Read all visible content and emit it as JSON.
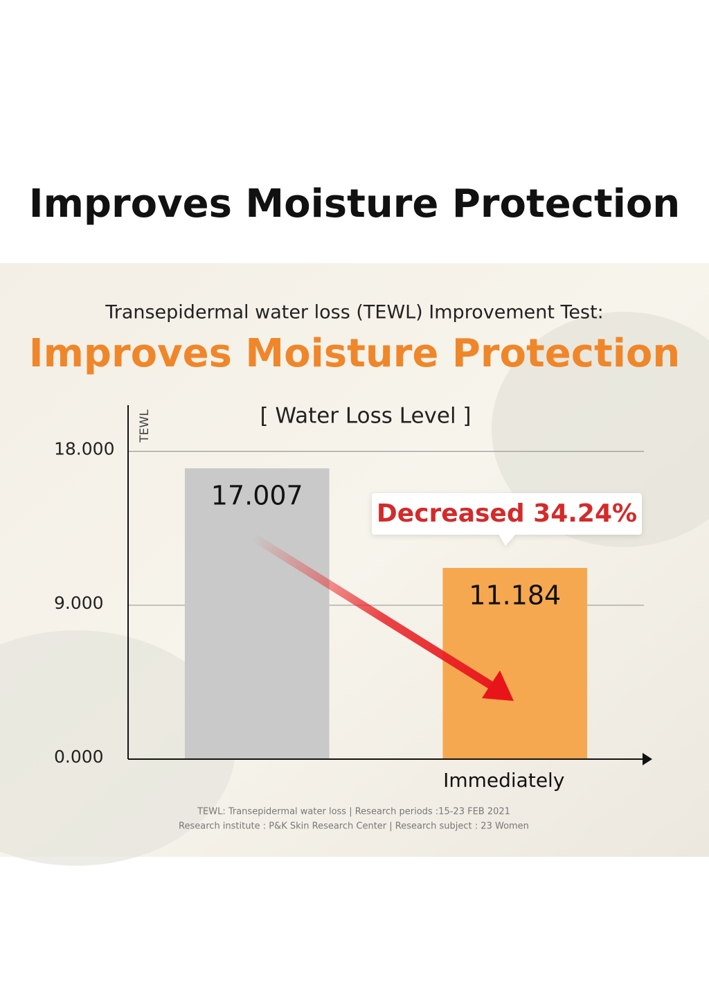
{
  "heading": "Improves Moisture Protection",
  "chart_data": {
    "type": "bar",
    "subtitle": "Transepidermal water loss (TEWL) Improvement Test:",
    "headline": "Improves Moisture Protection",
    "title": "[ Water Loss Level ]",
    "ylabel": "TEWL",
    "categories": [
      null,
      "Immediately"
    ],
    "values": [
      17.007,
      11.184
    ],
    "colors": [
      "#c9c9c9",
      "#f6a850"
    ],
    "ylim": [
      0,
      20.7
    ],
    "yticks": [
      {
        "value": 0,
        "label": "0.000"
      },
      {
        "value": 9,
        "label": "9.000"
      },
      {
        "value": 18,
        "label": "18.000"
      }
    ],
    "grid": true,
    "annotation": "Decreased 34.24%",
    "notes": [
      "TEWL: Transepidermal water loss | Research periods :15-23 FEB 2021",
      "Research institute : P&K Skin Research Center | Research subject : 23 Women"
    ]
  }
}
